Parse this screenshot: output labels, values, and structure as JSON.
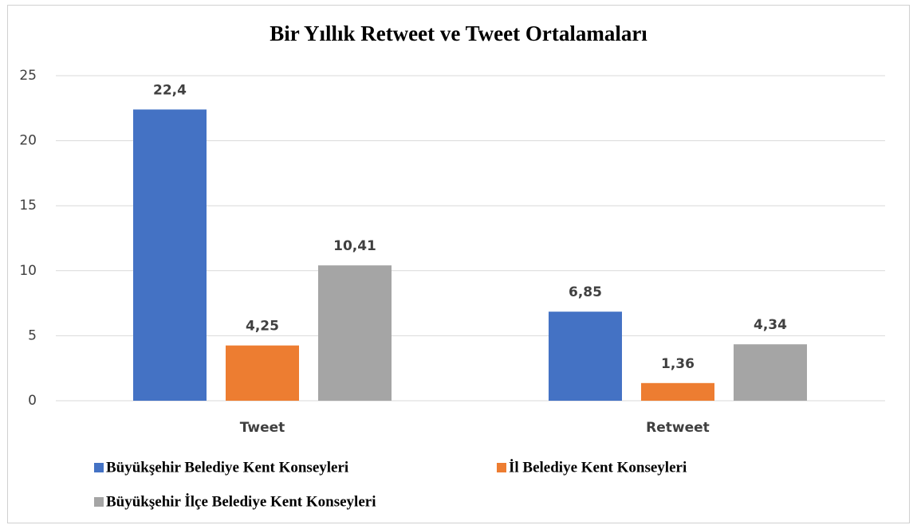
{
  "chart_data": {
    "type": "bar",
    "title": "Bir Yıllık Retweet ve Tweet Ortalamaları",
    "categories": [
      "Tweet",
      "Retweet"
    ],
    "series": [
      {
        "name": "Büyükşehir Belediye Kent Konseyleri",
        "color": "#4472c4",
        "values": [
          22.4,
          6.85
        ],
        "value_labels": [
          "22,4",
          "6,85"
        ]
      },
      {
        "name": "İl Belediye Kent Konseyleri",
        "color": "#ed7d31",
        "values": [
          4.25,
          1.36
        ],
        "value_labels": [
          "4,25",
          "1,36"
        ]
      },
      {
        "name": "Büyükşehir İlçe Belediye Kent Konseyleri",
        "color": "#a5a5a5",
        "values": [
          10.41,
          4.34
        ],
        "value_labels": [
          "10,41",
          "4,34"
        ]
      }
    ],
    "ylim": [
      0,
      25
    ],
    "yticks": [
      0,
      5,
      10,
      15,
      20,
      25
    ],
    "grid": true
  }
}
